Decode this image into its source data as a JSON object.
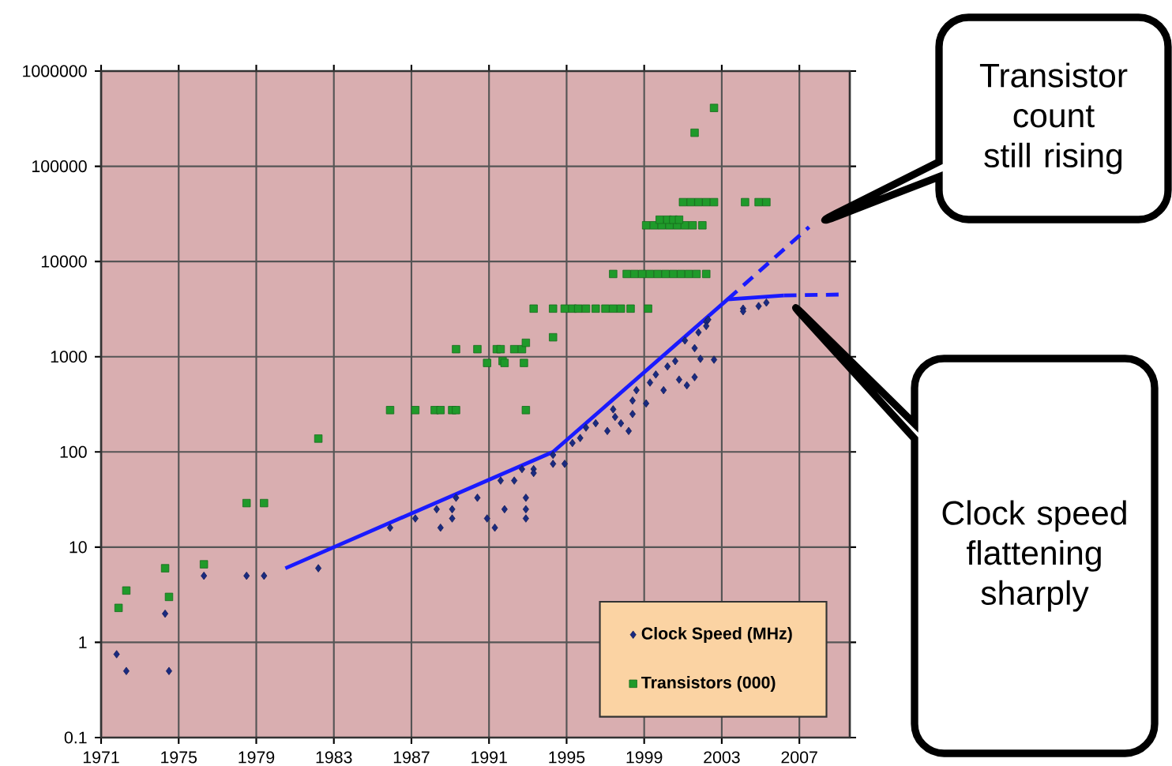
{
  "chart_data": {
    "type": "scatter",
    "log": "y",
    "grid": true,
    "legend": "bottom right",
    "xlim": [
      1971,
      2009.6
    ],
    "ylim": [
      0.1,
      1000000
    ],
    "xticks": [
      1971,
      1975,
      1979,
      1983,
      1987,
      1991,
      1995,
      1999,
      2003,
      2007
    ],
    "yticks": [
      0.1,
      1,
      10,
      100,
      1000,
      10000,
      100000,
      1000000
    ],
    "annotations": [
      "Transistor count still rising",
      "Clock speed flattening sharply"
    ],
    "series": [
      {
        "name": "Clock Speed (MHz)",
        "marker": "diamond",
        "color": "#1a2a80",
        "x": [
          1971.8,
          1972.3,
          1974.3,
          1974.5,
          1976.3,
          1978.5,
          1979.4,
          1982.2,
          1985.9,
          1987.2,
          1988.3,
          1988.5,
          1989.1,
          1989.3,
          1989.1,
          1990.4,
          1990.9,
          1991.3,
          1991.6,
          1991.8,
          1992.3,
          1992.7,
          1992.9,
          1992.9,
          1992.9,
          1993.3,
          1993.3,
          1994.3,
          1994.3,
          1994.9,
          1995.3,
          1995.7,
          1996.0,
          1996.5,
          1997.1,
          1997.4,
          1997.5,
          1997.8,
          1998.2,
          1998.4,
          1998.4,
          1998.6,
          1999.1,
          1999.3,
          1999.6,
          2000.0,
          2000.2,
          2000.6,
          2000.8,
          2001.1,
          2001.2,
          2001.6,
          2001.6,
          2001.8,
          2001.9,
          2002.2,
          2002.2,
          2002.3,
          2002.6,
          2004.1,
          2004.1,
          2004.9,
          2005.3
        ],
        "values": [
          0.75,
          0.5,
          2,
          0.5,
          5,
          5,
          5,
          6,
          16,
          20,
          25,
          16,
          25,
          33,
          20,
          33,
          20,
          16,
          50,
          25,
          50,
          66,
          33,
          25,
          20,
          66,
          60,
          93,
          75,
          75,
          124,
          140,
          180,
          200,
          166,
          280,
          233,
          200,
          166,
          346,
          250,
          445,
          323,
          535,
          650,
          445,
          790,
          900,
          575,
          1480,
          500,
          610,
          1230,
          1800,
          950,
          2330,
          2100,
          2450,
          930,
          3200,
          3000,
          3400,
          3700
        ]
      },
      {
        "name": "Transistors (000)",
        "marker": "square",
        "color": "#1f9a2a",
        "x": [
          1971.9,
          1972.3,
          1974.3,
          1974.5,
          1976.3,
          1978.5,
          1979.4,
          1982.2,
          1985.9,
          1987.2,
          1988.2,
          1988.5,
          1989.1,
          1989.3,
          1992.9,
          1989.3,
          1990.4,
          1991.4,
          1991.6,
          1992.3,
          1992.7,
          1992.9,
          1990.9,
          1991.7,
          1991.8,
          1992.8,
          1993.3,
          1994.3,
          1994.3,
          1994.9,
          1995.3,
          1995.6,
          1996.0,
          1996.5,
          1997.0,
          1997.4,
          1997.8,
          1998.3,
          1999.2,
          1997.4,
          1998.1,
          1998.5,
          1998.9,
          1999.3,
          1999.7,
          2000.1,
          2000.5,
          2000.9,
          2001.3,
          2001.7,
          2002.2,
          1999.1,
          1999.5,
          1999.9,
          2000.3,
          2000.7,
          2001.1,
          2001.5,
          2002.0,
          1999.8,
          2000.2,
          2000.5,
          2000.8,
          2001.0,
          2001.4,
          2001.8,
          2002.2,
          2002.6,
          2004.2,
          2004.9,
          2005.3,
          2001.6,
          2002.6
        ],
        "values": [
          2.3,
          3.5,
          6,
          3,
          6.6,
          29,
          29,
          138,
          275,
          275,
          275,
          275,
          275,
          275,
          275,
          1200,
          1200,
          1200,
          1200,
          1200,
          1200,
          1400,
          860,
          900,
          860,
          860,
          3200,
          1600,
          3200,
          3200,
          3200,
          3200,
          3200,
          3200,
          3200,
          3200,
          3200,
          3200,
          3200,
          7400,
          7400,
          7400,
          7400,
          7400,
          7400,
          7400,
          7400,
          7400,
          7400,
          7400,
          7400,
          24000,
          24000,
          24000,
          24000,
          24000,
          24000,
          24000,
          24000,
          27500,
          27500,
          27500,
          27500,
          42000,
          42000,
          42000,
          42000,
          42000,
          42000,
          42000,
          42000,
          225000,
          410000
        ]
      },
      {
        "type": "line",
        "marker": "none",
        "line_style": "solid",
        "color": "#1a1aff",
        "x": [
          1980.5,
          1994.3,
          2003.3,
          2006.2
        ],
        "values": [
          6,
          100,
          4000,
          4400
        ]
      },
      {
        "type": "line",
        "marker": "none",
        "line_style": "dashed",
        "color": "#1a1aff",
        "x": [
          2006.2,
          2009.2
        ],
        "values": [
          4400,
          4500
        ]
      },
      {
        "type": "line",
        "marker": "none",
        "line_style": "dashed",
        "color": "#1a1aff",
        "x": [
          2003.3,
          2007.5
        ],
        "values": [
          4000,
          23000
        ]
      }
    ]
  }
}
